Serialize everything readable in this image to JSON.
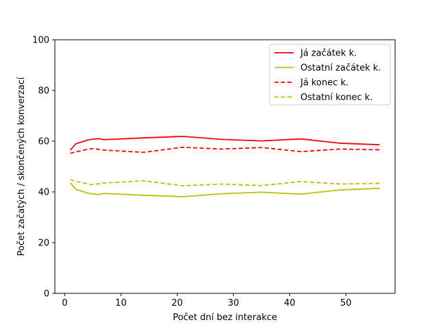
{
  "chart_data": {
    "type": "line",
    "xlabel": "Počet dní bez interakce",
    "ylabel": "Počet začatých / skončených konverzací",
    "xlim": [
      -1.75,
      58.75
    ],
    "ylim": [
      0,
      100
    ],
    "xticks": [
      0,
      10,
      20,
      30,
      40,
      50
    ],
    "yticks": [
      0,
      20,
      40,
      60,
      80,
      100
    ],
    "grid": false,
    "legend_position": "top-right",
    "series": [
      {
        "name": "Já začátek k.",
        "color": "#ff0000",
        "dash": "solid",
        "x": [
          1,
          2,
          3,
          4,
          5,
          6,
          7,
          14,
          21,
          28,
          35,
          42,
          49,
          56
        ],
        "y": [
          56.5,
          59,
          59.7,
          60.4,
          60.8,
          61,
          60.6,
          61.3,
          61.9,
          60.7,
          60.1,
          60.9,
          59.2,
          58.6
        ]
      },
      {
        "name": "Ostatní začátek k.",
        "color": "#bfbf00",
        "dash": "solid",
        "x": [
          1,
          2,
          3,
          4,
          5,
          6,
          7,
          14,
          21,
          28,
          35,
          42,
          49,
          56
        ],
        "y": [
          43.6,
          41,
          40.3,
          39.6,
          39.2,
          39,
          39.4,
          38.7,
          38.1,
          39.3,
          39.9,
          39.1,
          40.8,
          41.4
        ]
      },
      {
        "name": "Já konec k.",
        "color": "#ff0000",
        "dash": "dashed",
        "x": [
          1,
          2,
          3,
          4,
          5,
          6,
          7,
          14,
          21,
          28,
          35,
          42,
          49,
          56
        ],
        "y": [
          55.2,
          55.8,
          56.3,
          56.8,
          57.1,
          56.8,
          56.5,
          55.6,
          57.6,
          56.9,
          57.5,
          55.9,
          56.9,
          56.6
        ]
      },
      {
        "name": "Ostatní konec k.",
        "color": "#bfbf00",
        "dash": "dashed",
        "x": [
          1,
          2,
          3,
          4,
          5,
          6,
          7,
          14,
          21,
          28,
          35,
          42,
          49,
          56
        ],
        "y": [
          44.8,
          44.2,
          43.7,
          43.2,
          42.9,
          43.2,
          43.5,
          44.4,
          42.4,
          43.1,
          42.5,
          44.1,
          43.1,
          43.4
        ]
      }
    ]
  }
}
